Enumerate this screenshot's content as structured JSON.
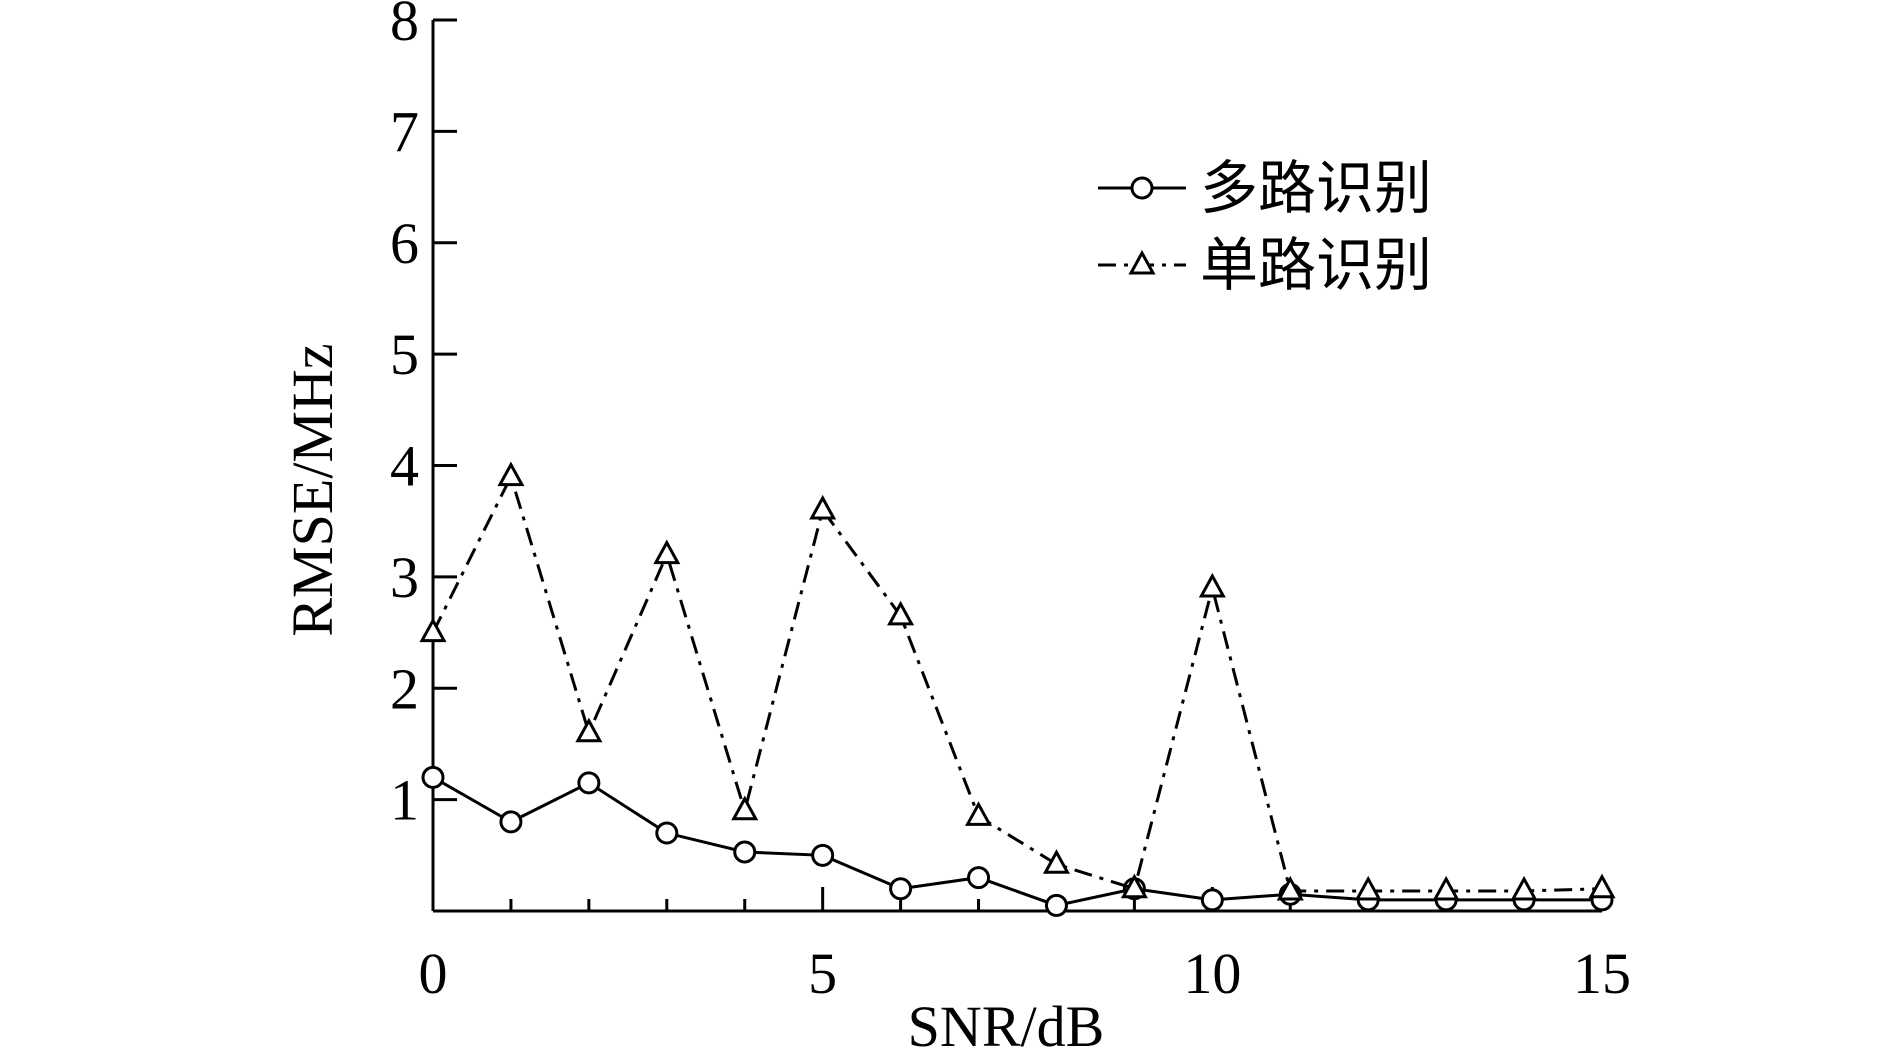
{
  "chart_data": {
    "type": "line",
    "title": "",
    "xlabel": "SNR/dB",
    "ylabel": "RMSE/MHz",
    "xlim": [
      0,
      15
    ],
    "ylim": [
      0,
      8
    ],
    "xticks": [
      0,
      5,
      10,
      15
    ],
    "yticks": [
      1,
      2,
      3,
      4,
      5,
      6,
      7,
      8
    ],
    "x_minor_ticks": [
      1,
      2,
      3,
      4,
      6,
      7,
      8,
      9,
      11,
      12,
      13,
      14
    ],
    "grid": false,
    "legend_position": "top-right",
    "x": [
      0,
      1,
      2,
      3,
      4,
      5,
      6,
      7,
      8,
      9,
      10,
      11,
      12,
      13,
      14,
      15
    ],
    "series": [
      {
        "name": "多路识别",
        "marker": "circle",
        "line_style": "solid",
        "values": [
          1.2,
          0.8,
          1.15,
          0.7,
          0.53,
          0.5,
          0.2,
          0.3,
          0.05,
          0.2,
          0.1,
          0.15,
          0.1,
          0.1,
          0.1,
          0.1
        ]
      },
      {
        "name": "单路识别",
        "marker": "triangle",
        "line_style": "dash-dot",
        "values": [
          2.5,
          3.9,
          1.6,
          3.2,
          0.9,
          3.6,
          2.65,
          0.85,
          0.42,
          0.2,
          2.9,
          0.18,
          0.18,
          0.18,
          0.18,
          0.2
        ]
      }
    ]
  }
}
